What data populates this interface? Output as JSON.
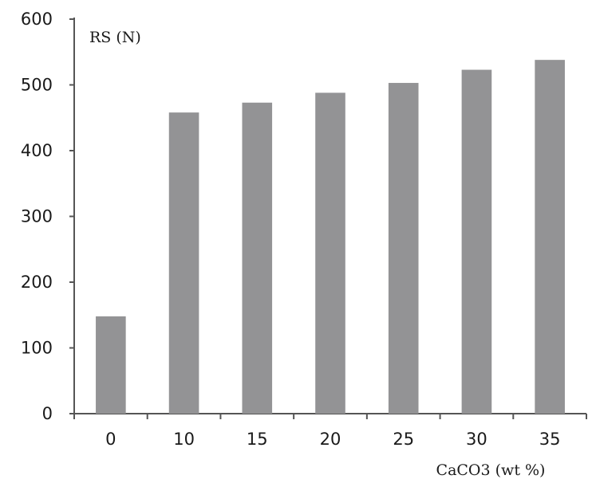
{
  "chart_data": {
    "type": "bar",
    "title": "",
    "ylabel": "RS (N)",
    "xlabel": "CaCO3  (wt %)",
    "categories": [
      "0",
      "10",
      "15",
      "20",
      "25",
      "30",
      "35"
    ],
    "values": [
      148,
      458,
      473,
      488,
      503,
      523,
      538
    ],
    "ylim": [
      0,
      600
    ],
    "yticks": [
      "0",
      "100",
      "200",
      "300",
      "400",
      "500",
      "600"
    ],
    "bar_color": "#939395",
    "grid": false,
    "legend": "none"
  }
}
